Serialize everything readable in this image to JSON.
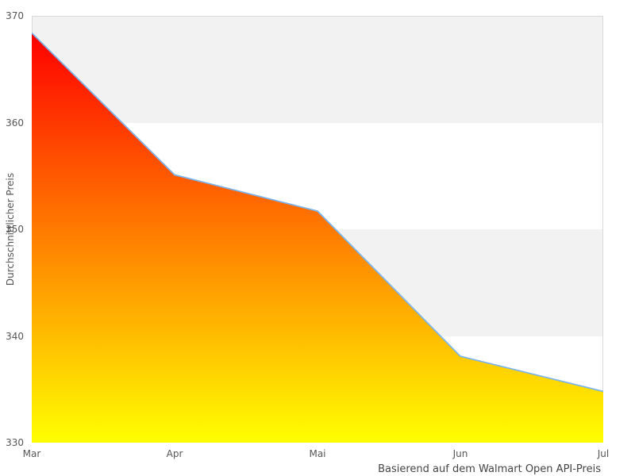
{
  "chart_data": {
    "type": "area",
    "categories": [
      "Mar",
      "Apr",
      "Mai",
      "Jun",
      "Jul"
    ],
    "values": [
      368.4,
      355.1,
      351.7,
      338.1,
      334.8
    ],
    "title": "",
    "xlabel": "Basierend auf dem Walmart Open API-Preis",
    "ylabel": "Durchschnittlicher Preis",
    "ylim": [
      330,
      370
    ],
    "yticks": [
      370,
      360,
      350,
      340,
      330
    ],
    "legend": "none",
    "grid": "alternating-horizontal-bands",
    "colors": {
      "line": "#7cb5ec",
      "fill_top": "#ff0000",
      "fill_bottom": "#ffff00",
      "band": "#f2f2f2",
      "plot_border": "#d9d9d9",
      "tick_label": "#555555",
      "axis_title": "#555555",
      "caption": "#444444",
      "background": "#ffffff"
    }
  }
}
